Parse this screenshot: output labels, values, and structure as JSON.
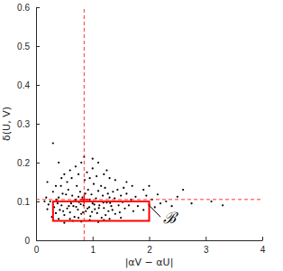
{
  "chart_data": {
    "type": "scatter",
    "x_label": "|αV − αU|",
    "y_label": "δ(U, V)",
    "xlim": [
      0,
      4
    ],
    "ylim": [
      0,
      0.6
    ],
    "xticks": [
      0,
      1,
      2,
      3,
      4
    ],
    "yticks": [
      0,
      0.1,
      0.2,
      0.3,
      0.4,
      0.5,
      0.6
    ],
    "grid": false,
    "series": [
      {
        "color": "#000000",
        "marker": "dot",
        "x": [
          0.32,
          0.35,
          0.38,
          0.4,
          0.42,
          0.45,
          0.47,
          0.5,
          0.52,
          0.55,
          0.57,
          0.6,
          0.62,
          0.64,
          0.66,
          0.68,
          0.7,
          0.72,
          0.74,
          0.76,
          0.78,
          0.8,
          0.82,
          0.84,
          0.86,
          0.88,
          0.9,
          0.92,
          0.94,
          0.96,
          0.98,
          1.0,
          1.02,
          1.04,
          1.06,
          1.08,
          1.1,
          1.12,
          1.14,
          1.16,
          1.18,
          1.2,
          1.22,
          1.25,
          1.28,
          1.3,
          1.33,
          1.36,
          1.4,
          1.43,
          1.46,
          1.5,
          0.25,
          0.28,
          0.3,
          0.36,
          0.44,
          0.48,
          0.53,
          0.58,
          0.63,
          0.67,
          0.71,
          0.75,
          0.79,
          0.83,
          0.87,
          0.91,
          0.95,
          0.99,
          1.03,
          1.07,
          1.11,
          1.15,
          1.19,
          1.23,
          1.27,
          1.31,
          1.35,
          1.39,
          1.44,
          1.48,
          1.53,
          1.57,
          1.6,
          1.64,
          1.68,
          1.72,
          1.76,
          1.8,
          1.85,
          1.9,
          1.95,
          2.0,
          2.05,
          2.1,
          2.15,
          2.2,
          2.3,
          2.4,
          2.5,
          2.6,
          2.75,
          3.1,
          3.3,
          0.2,
          0.22,
          0.15,
          0.18,
          0.5,
          0.65,
          0.8,
          0.95,
          1.1,
          1.3,
          1.5,
          0.4,
          0.75,
          1.2,
          0.6,
          0.5,
          0.6,
          0.7,
          0.8,
          0.9,
          1.0,
          1.1,
          1.2,
          1.3,
          0.85,
          1.0,
          0.45,
          0.55,
          1.4,
          1.6,
          1.7,
          0.35,
          0.4,
          0.75,
          0.95,
          1.25,
          1.55,
          1.9,
          2.0,
          0.3,
          0.2
        ],
        "values": [
          0.085,
          0.07,
          0.095,
          0.11,
          0.078,
          0.09,
          0.12,
          0.065,
          0.1,
          0.082,
          0.13,
          0.072,
          0.095,
          0.115,
          0.088,
          0.06,
          0.105,
          0.14,
          0.079,
          0.098,
          0.125,
          0.068,
          0.11,
          0.09,
          0.155,
          0.075,
          0.1,
          0.13,
          0.085,
          0.062,
          0.118,
          0.095,
          0.145,
          0.08,
          0.108,
          0.07,
          0.127,
          0.09,
          0.1,
          0.058,
          0.115,
          0.083,
          0.135,
          0.097,
          0.075,
          0.11,
          0.088,
          0.125,
          0.068,
          0.1,
          0.09,
          0.115,
          0.1,
          0.06,
          0.125,
          0.105,
          0.14,
          0.075,
          0.118,
          0.088,
          0.16,
          0.101,
          0.086,
          0.112,
          0.093,
          0.072,
          0.12,
          0.082,
          0.105,
          0.073,
          0.092,
          0.165,
          0.083,
          0.14,
          0.097,
          0.065,
          0.12,
          0.096,
          0.078,
          0.108,
          0.13,
          0.072,
          0.098,
          0.082,
          0.12,
          0.09,
          0.105,
          0.075,
          0.112,
          0.088,
          0.1,
          0.078,
          0.115,
          0.092,
          0.105,
          0.085,
          0.118,
          0.095,
          0.1,
          0.088,
          0.112,
          0.13,
          0.095,
          0.1,
          0.09,
          0.08,
          0.092,
          0.1,
          0.11,
          0.045,
          0.05,
          0.048,
          0.052,
          0.047,
          0.055,
          0.058,
          0.055,
          0.058,
          0.052,
          0.055,
          0.17,
          0.18,
          0.19,
          0.2,
          0.175,
          0.185,
          0.2,
          0.17,
          0.16,
          0.215,
          0.21,
          0.16,
          0.15,
          0.155,
          0.15,
          0.14,
          0.14,
          0.2,
          0.17,
          0.16,
          0.18,
          0.135,
          0.13,
          0.14,
          0.25,
          0.15
        ]
      }
    ],
    "annotations": [
      {
        "type": "vline",
        "x": 0.85,
        "color": "#ff0000",
        "line_style": "dashed"
      },
      {
        "type": "hline",
        "y": 0.105,
        "color": "#ff0000",
        "line_style": "dashed"
      },
      {
        "type": "point",
        "x": 0.85,
        "y": 0.105,
        "color": "#ff0000",
        "marker": "plus"
      },
      {
        "type": "rect",
        "x": [
          0.3,
          2.0
        ],
        "y": [
          0.05,
          0.1
        ],
        "color": "#ff0000"
      },
      {
        "type": "text",
        "text": "ℬ",
        "x": 2.25,
        "y": 0.045,
        "arrow_from": [
          2.0,
          0.09
        ],
        "arrow_to": [
          2.2,
          0.06
        ],
        "color": "#000000"
      }
    ]
  }
}
